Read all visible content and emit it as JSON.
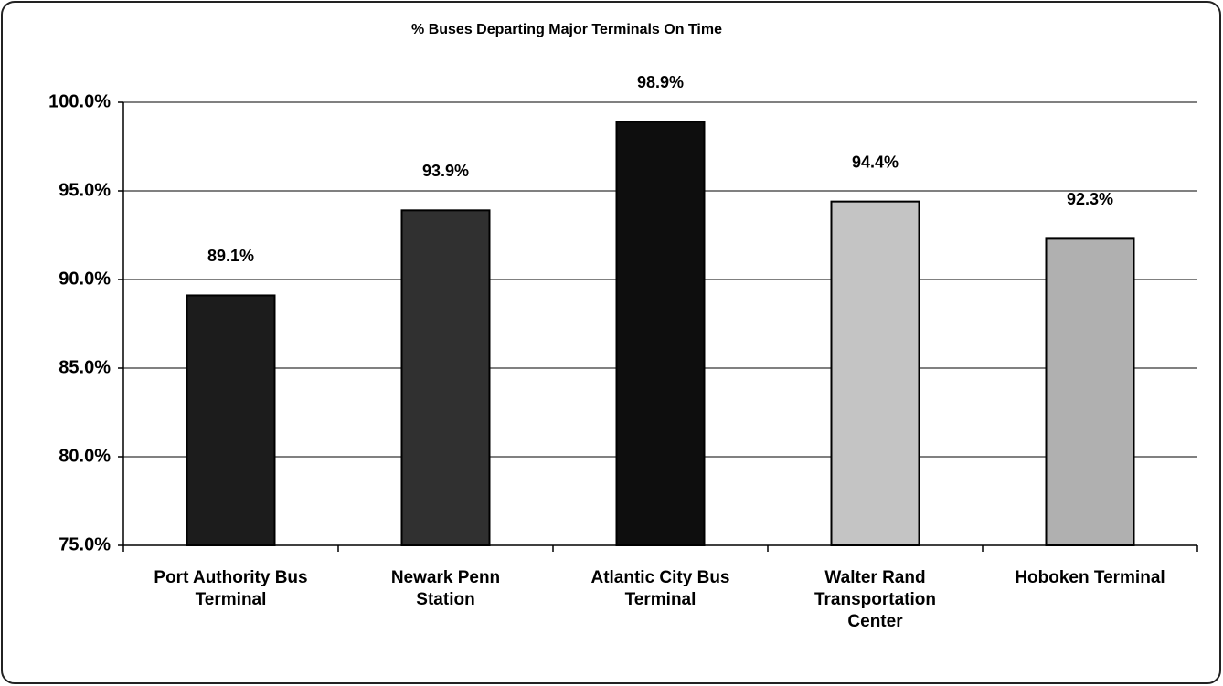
{
  "chart_data": {
    "type": "bar",
    "title": "% Buses Departing Major Terminals On Time",
    "categories": [
      "Port Authority Bus\nTerminal",
      "Newark Penn\nStation",
      "Atlantic City Bus\nTerminal",
      "Walter Rand\nTransportation\nCenter",
      "Hoboken Terminal"
    ],
    "values": [
      89.1,
      93.9,
      98.9,
      94.4,
      92.3
    ],
    "value_labels": [
      "89.1%",
      "93.9%",
      "98.9%",
      "94.4%",
      "92.3%"
    ],
    "colors": [
      "#1c1c1c",
      "#303030",
      "#0e0e0e",
      "#c4c4c4",
      "#b0b0b0"
    ],
    "ylim": [
      75,
      100
    ],
    "yticks": [
      {
        "value": 75,
        "label": "75.0%"
      },
      {
        "value": 80,
        "label": "80.0%"
      },
      {
        "value": 85,
        "label": "85.0%"
      },
      {
        "value": 90,
        "label": "90.0%"
      },
      {
        "value": 95,
        "label": "95.0%"
      },
      {
        "value": 100,
        "label": "100.0%"
      }
    ],
    "grid": true
  }
}
